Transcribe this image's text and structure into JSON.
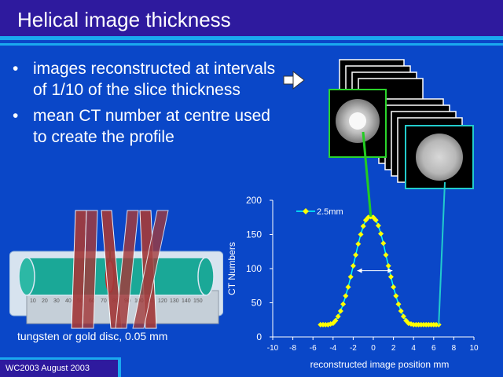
{
  "title": "Helical image thickness",
  "bullets": [
    "images reconstructed at intervals of 1/10 of the slice thickness",
    "mean CT number at centre used to create the profile"
  ],
  "bullet_symbol": "•",
  "caption": "tungsten or gold disc, 0.05 mm",
  "footer": "WC2003 August 2003",
  "phantom_ruler_labels": [
    "10",
    "20",
    "30",
    "40",
    "50",
    "60",
    "70",
    "80",
    "90",
    "100",
    "110",
    "120",
    "130",
    "140",
    "150"
  ],
  "icons": [
    "arrow-right-icon",
    "ct-slice-stack",
    "phantom-image",
    "slice-bars"
  ],
  "colors": {
    "background": "#0a47c8",
    "title_bar": "#2e1a9e",
    "accent": "#1aa9ef",
    "series_line": "#00ffff",
    "series_marker": "#ffff00",
    "pointer_green": "#22cc22",
    "pointer_cyan": "#22cccc"
  },
  "chart_data": {
    "type": "line",
    "title": "",
    "xlabel": "reconstructed image position mm",
    "ylabel": "CT Numbers",
    "xlim": [
      -10,
      10
    ],
    "ylim": [
      0,
      200
    ],
    "x_ticks": [
      -10,
      -8,
      -6,
      -4,
      -2,
      0,
      2,
      4,
      6,
      8,
      10
    ],
    "y_ticks": [
      0,
      50,
      100,
      150,
      200
    ],
    "grid": false,
    "legend": "top-left",
    "series": [
      {
        "name": "2.5mm",
        "x": [
          -5.25,
          -5.0,
          -4.75,
          -4.5,
          -4.25,
          -4.0,
          -3.75,
          -3.5,
          -3.25,
          -3.0,
          -2.75,
          -2.5,
          -2.25,
          -2.0,
          -1.75,
          -1.5,
          -1.25,
          -1.0,
          -0.75,
          -0.5,
          -0.25,
          0.0,
          0.25,
          0.5,
          0.75,
          1.0,
          1.25,
          1.5,
          1.75,
          2.0,
          2.25,
          2.5,
          2.75,
          3.0,
          3.25,
          3.5,
          3.75,
          4.0,
          4.25,
          4.5,
          4.75,
          5.0,
          5.25,
          5.5,
          5.75,
          6.0,
          6.25,
          6.5
        ],
        "values": [
          18,
          18,
          18,
          18,
          19,
          20,
          24,
          30,
          38,
          48,
          60,
          73,
          88,
          104,
          120,
          136,
          150,
          162,
          171,
          175,
          176,
          175,
          171,
          163,
          151,
          137,
          120,
          104,
          88,
          73,
          60,
          48,
          38,
          30,
          24,
          20,
          19,
          18,
          18,
          18,
          18,
          18,
          18,
          18,
          18,
          18,
          18,
          18
        ]
      }
    ],
    "annotation": "double-headed arrow marking profile width"
  }
}
